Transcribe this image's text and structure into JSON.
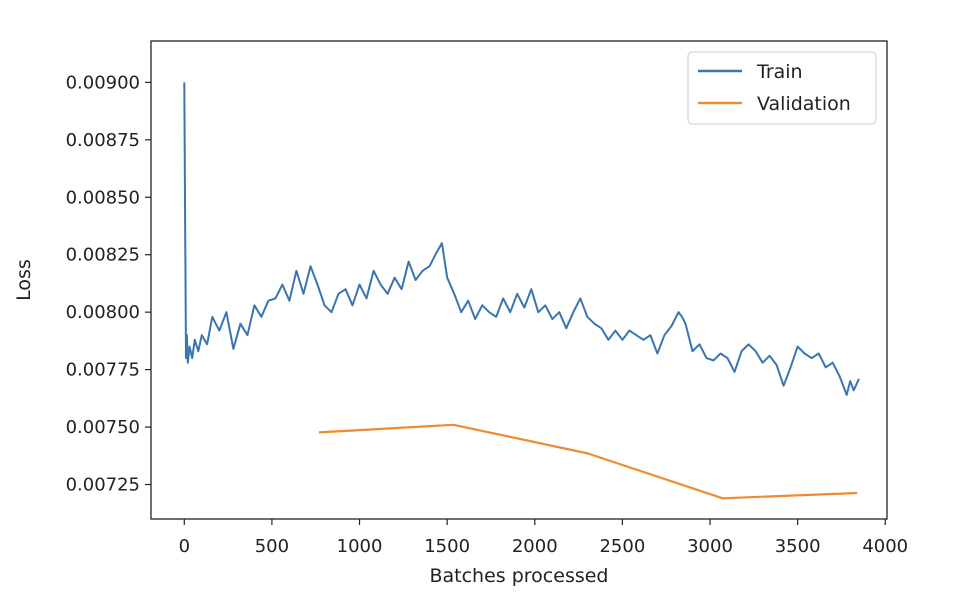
{
  "chart_data": {
    "type": "line",
    "title": "",
    "xlabel": "Batches processed",
    "ylabel": "Loss",
    "xlim": [
      -190,
      4010
    ],
    "ylim": [
      0.0071,
      0.00918
    ],
    "xticks": [
      0,
      500,
      1000,
      1500,
      2000,
      2500,
      3000,
      3500,
      4000
    ],
    "xtick_labels": [
      "0",
      "500",
      "1000",
      "1500",
      "2000",
      "2500",
      "3000",
      "3500",
      "4000"
    ],
    "yticks": [
      0.00725,
      0.0075,
      0.00775,
      0.008,
      0.00825,
      0.0085,
      0.00875,
      0.009
    ],
    "ytick_labels": [
      "0.00725",
      "0.00750",
      "0.00775",
      "0.00800",
      "0.00825",
      "0.00850",
      "0.00875",
      "0.00900"
    ],
    "grid": false,
    "legend_position": "top-right",
    "series": [
      {
        "name": "Train",
        "color": "#3b75af",
        "x": [
          0,
          5,
          10,
          15,
          20,
          30,
          45,
          60,
          80,
          100,
          130,
          160,
          200,
          240,
          280,
          320,
          360,
          400,
          440,
          480,
          520,
          560,
          600,
          640,
          680,
          720,
          760,
          800,
          840,
          880,
          920,
          960,
          1000,
          1040,
          1080,
          1120,
          1160,
          1200,
          1240,
          1280,
          1320,
          1360,
          1400,
          1440,
          1470,
          1500,
          1540,
          1580,
          1620,
          1660,
          1700,
          1740,
          1780,
          1820,
          1860,
          1900,
          1940,
          1980,
          2020,
          2060,
          2100,
          2140,
          2180,
          2220,
          2260,
          2300,
          2340,
          2380,
          2420,
          2460,
          2500,
          2540,
          2580,
          2620,
          2660,
          2700,
          2740,
          2780,
          2820,
          2840,
          2860,
          2900,
          2940,
          2980,
          3020,
          3060,
          3100,
          3140,
          3180,
          3220,
          3260,
          3300,
          3340,
          3380,
          3420,
          3460,
          3500,
          3540,
          3580,
          3620,
          3660,
          3700,
          3740,
          3780,
          3800,
          3820,
          3850
        ],
        "y": [
          0.009,
          0.00835,
          0.0078,
          0.0079,
          0.00778,
          0.00785,
          0.0078,
          0.00788,
          0.00783,
          0.0079,
          0.00786,
          0.00798,
          0.00792,
          0.008,
          0.00784,
          0.00795,
          0.0079,
          0.00803,
          0.00798,
          0.00805,
          0.00806,
          0.00812,
          0.00805,
          0.00818,
          0.00808,
          0.0082,
          0.00812,
          0.00803,
          0.008,
          0.00808,
          0.0081,
          0.00803,
          0.00812,
          0.00806,
          0.00818,
          0.00812,
          0.00808,
          0.00815,
          0.0081,
          0.00822,
          0.00814,
          0.00818,
          0.0082,
          0.00826,
          0.0083,
          0.00815,
          0.00808,
          0.008,
          0.00805,
          0.00797,
          0.00803,
          0.008,
          0.00798,
          0.00806,
          0.008,
          0.00808,
          0.00802,
          0.0081,
          0.008,
          0.00803,
          0.00797,
          0.008,
          0.00793,
          0.008,
          0.00806,
          0.00798,
          0.00795,
          0.00793,
          0.00788,
          0.00792,
          0.00788,
          0.00792,
          0.0079,
          0.00788,
          0.0079,
          0.00782,
          0.0079,
          0.00794,
          0.008,
          0.00798,
          0.00795,
          0.00783,
          0.00786,
          0.0078,
          0.00779,
          0.00782,
          0.0078,
          0.00774,
          0.00783,
          0.00786,
          0.00783,
          0.00778,
          0.00781,
          0.00777,
          0.00768,
          0.00776,
          0.00785,
          0.00782,
          0.0078,
          0.00782,
          0.00776,
          0.00778,
          0.00772,
          0.00764,
          0.0077,
          0.00766,
          0.00771
        ]
      },
      {
        "name": "Validation",
        "color": "#ef8a2e",
        "x": [
          768,
          1536,
          2304,
          3072,
          3840
        ],
        "y": [
          0.007477,
          0.00751,
          0.007385,
          0.00719,
          0.007213
        ]
      }
    ]
  }
}
